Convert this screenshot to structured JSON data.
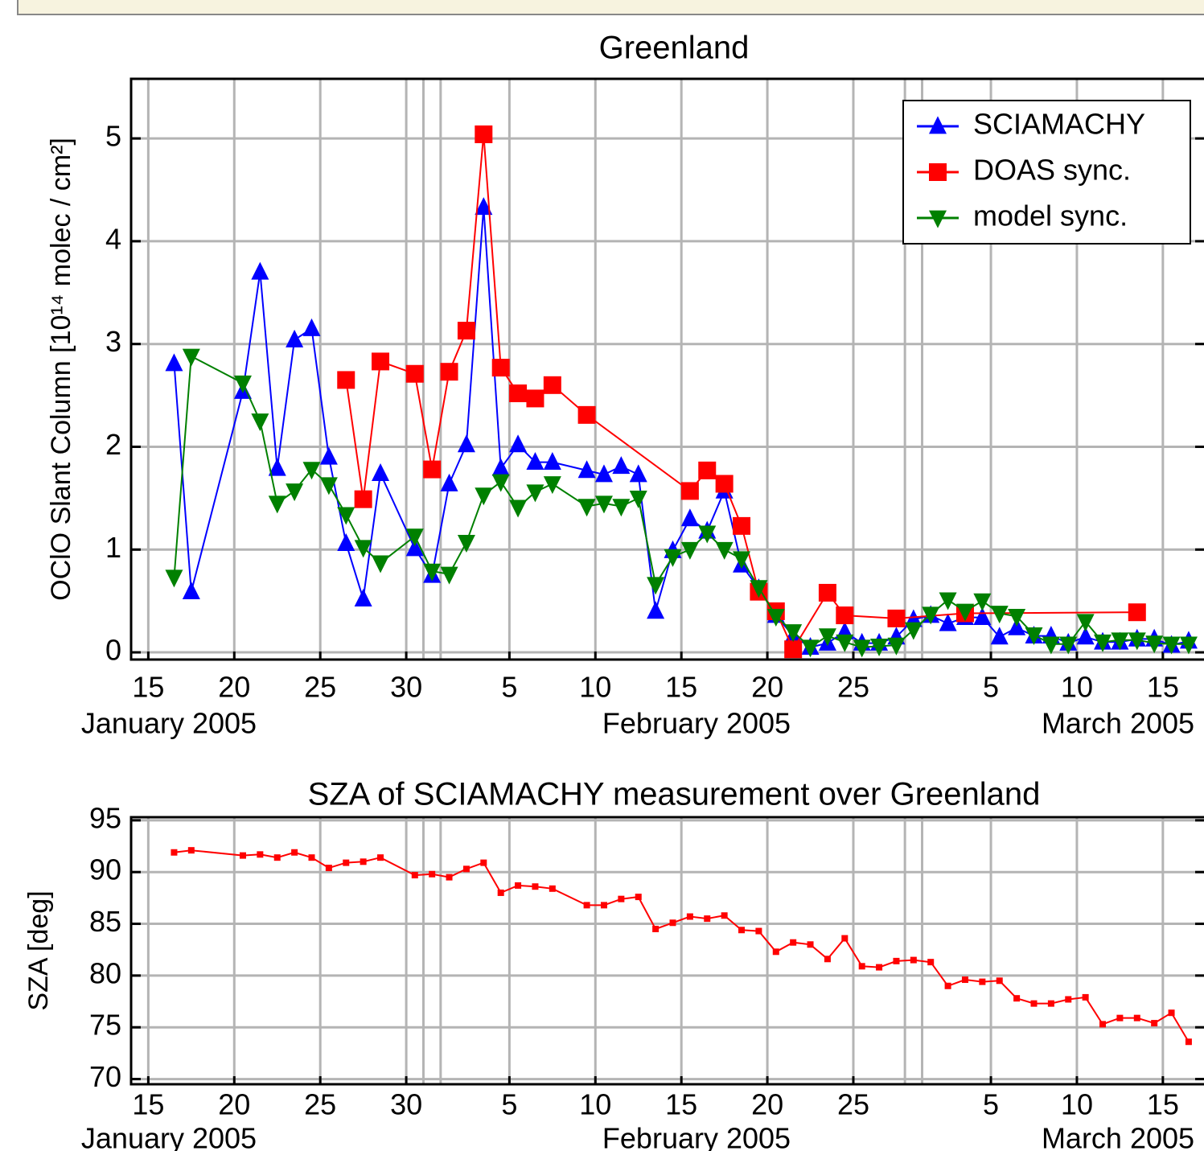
{
  "chart_data": [
    {
      "type": "line",
      "title": "Greenland",
      "y_label": "OClO Slant Column  [10¹⁴ molec / cm²]",
      "month_labels": [
        "January 2005",
        "February 2005",
        "March 2005"
      ],
      "xlim": [
        "2005-01-14",
        "2005-03-18"
      ],
      "xticks": [
        {
          "value": "2005-01-15",
          "label": "15"
        },
        {
          "value": "2005-01-20",
          "label": "20"
        },
        {
          "value": "2005-01-25",
          "label": "25"
        },
        {
          "value": "2005-01-30",
          "label": "30"
        },
        {
          "value": "2005-02-05",
          "label": "5"
        },
        {
          "value": "2005-02-10",
          "label": "10"
        },
        {
          "value": "2005-02-15",
          "label": "15"
        },
        {
          "value": "2005-02-20",
          "label": "20"
        },
        {
          "value": "2005-02-25",
          "label": "25"
        },
        {
          "value": "2005-03-05",
          "label": "5"
        },
        {
          "value": "2005-03-10",
          "label": "10"
        },
        {
          "value": "2005-03-15",
          "label": "15"
        }
      ],
      "month_boundaries": [
        "2005-01-31",
        "2005-02-01",
        "2005-02-28",
        "2005-03-01"
      ],
      "ylim": [
        -0.07,
        5.58
      ],
      "yticks": [
        0,
        1,
        2,
        3,
        4,
        5
      ],
      "grid": true,
      "legend": "upper right",
      "series": [
        {
          "name": "SCIAMACHY",
          "color": "#0000ff",
          "marker": "triangle-up",
          "x": [
            "2005-01-16",
            "2005-01-17",
            "2005-01-20",
            "2005-01-21",
            "2005-01-22",
            "2005-01-23",
            "2005-01-24",
            "2005-01-25",
            "2005-01-26",
            "2005-01-27",
            "2005-01-28",
            "2005-01-30",
            "2005-01-31",
            "2005-02-01",
            "2005-02-02",
            "2005-02-03",
            "2005-02-04",
            "2005-02-05",
            "2005-02-06",
            "2005-02-07",
            "2005-02-09",
            "2005-02-10",
            "2005-02-11",
            "2005-02-12",
            "2005-02-13",
            "2005-02-14",
            "2005-02-15",
            "2005-02-16",
            "2005-02-17",
            "2005-02-18",
            "2005-02-19",
            "2005-02-20",
            "2005-02-21",
            "2005-02-22",
            "2005-02-23",
            "2005-02-24",
            "2005-02-25",
            "2005-02-26",
            "2005-02-27",
            "2005-02-28",
            "2005-03-01",
            "2005-03-02",
            "2005-03-03",
            "2005-03-04",
            "2005-03-05",
            "2005-03-06",
            "2005-03-07",
            "2005-03-08",
            "2005-03-09",
            "2005-03-10",
            "2005-03-11",
            "2005-03-12",
            "2005-03-13",
            "2005-03-14",
            "2005-03-15",
            "2005-03-16"
          ],
          "values": [
            2.81,
            0.59,
            2.54,
            3.7,
            1.79,
            3.04,
            3.15,
            1.9,
            1.06,
            0.52,
            1.74,
            1.01,
            0.75,
            1.64,
            2.02,
            4.33,
            1.79,
            2.02,
            1.85,
            1.85,
            1.77,
            1.73,
            1.81,
            1.73,
            0.4,
            0.99,
            1.3,
            1.18,
            1.57,
            0.85,
            0.62,
            0.36,
            0.16,
            0.05,
            0.09,
            0.2,
            0.09,
            0.09,
            0.15,
            0.32,
            0.36,
            0.28,
            0.34,
            0.34,
            0.15,
            0.24,
            0.16,
            0.16,
            0.09,
            0.15,
            0.1,
            0.1,
            0.13,
            0.13,
            0.07,
            0.11
          ]
        },
        {
          "name": "DOAS sync.",
          "color": "#ff0000",
          "marker": "square",
          "x": [
            "2005-01-26",
            "2005-01-27",
            "2005-01-28",
            "2005-01-30",
            "2005-01-31",
            "2005-02-01",
            "2005-02-02",
            "2005-02-03",
            "2005-02-04",
            "2005-02-05",
            "2005-02-06",
            "2005-02-07",
            "2005-02-09",
            "2005-02-15",
            "2005-02-16",
            "2005-02-17",
            "2005-02-18",
            "2005-02-19",
            "2005-02-20",
            "2005-02-21",
            "2005-02-23",
            "2005-02-24",
            "2005-02-27",
            "2005-03-03",
            "2005-03-13"
          ],
          "values": [
            2.65,
            1.49,
            2.83,
            2.71,
            1.78,
            2.73,
            3.13,
            5.04,
            2.77,
            2.52,
            2.47,
            2.6,
            2.31,
            1.57,
            1.77,
            1.64,
            1.23,
            0.59,
            0.4,
            0.03,
            0.58,
            0.36,
            0.33,
            0.38,
            0.39
          ]
        },
        {
          "name": "model sync.",
          "color": "#008000",
          "marker": "triangle-down",
          "x": [
            "2005-01-16",
            "2005-01-17",
            "2005-01-20",
            "2005-01-21",
            "2005-01-22",
            "2005-01-23",
            "2005-01-24",
            "2005-01-25",
            "2005-01-26",
            "2005-01-27",
            "2005-01-28",
            "2005-01-30",
            "2005-01-31",
            "2005-02-01",
            "2005-02-02",
            "2005-02-03",
            "2005-02-04",
            "2005-02-05",
            "2005-02-06",
            "2005-02-07",
            "2005-02-09",
            "2005-02-10",
            "2005-02-11",
            "2005-02-12",
            "2005-02-13",
            "2005-02-14",
            "2005-02-15",
            "2005-02-16",
            "2005-02-17",
            "2005-02-18",
            "2005-02-19",
            "2005-02-20",
            "2005-02-21",
            "2005-02-22",
            "2005-02-23",
            "2005-02-24",
            "2005-02-25",
            "2005-02-26",
            "2005-02-27",
            "2005-02-28",
            "2005-03-01",
            "2005-03-02",
            "2005-03-03",
            "2005-03-04",
            "2005-03-05",
            "2005-03-06",
            "2005-03-07",
            "2005-03-08",
            "2005-03-09",
            "2005-03-10",
            "2005-03-11",
            "2005-03-12",
            "2005-03-13",
            "2005-03-14",
            "2005-03-15",
            "2005-03-16"
          ],
          "values": [
            0.73,
            2.88,
            2.62,
            2.25,
            1.45,
            1.57,
            1.78,
            1.63,
            1.34,
            1.02,
            0.87,
            1.13,
            0.79,
            0.76,
            1.07,
            1.53,
            1.66,
            1.41,
            1.56,
            1.64,
            1.42,
            1.45,
            1.42,
            1.5,
            0.66,
            0.93,
            1.0,
            1.16,
            1.0,
            0.91,
            0.63,
            0.35,
            0.2,
            0.05,
            0.16,
            0.1,
            0.05,
            0.06,
            0.07,
            0.22,
            0.37,
            0.51,
            0.4,
            0.5,
            0.38,
            0.35,
            0.17,
            0.08,
            0.08,
            0.3,
            0.1,
            0.12,
            0.12,
            0.09,
            0.08,
            0.08
          ]
        }
      ]
    },
    {
      "type": "line",
      "title": "SZA of SCIAMACHY measurement over Greenland",
      "y_label": "SZA [deg]",
      "month_labels": [
        "January 2005",
        "February 2005",
        "March 2005"
      ],
      "xlim": [
        "2005-01-14",
        "2005-03-18"
      ],
      "xticks": [
        {
          "value": "2005-01-15",
          "label": "15"
        },
        {
          "value": "2005-01-20",
          "label": "20"
        },
        {
          "value": "2005-01-25",
          "label": "25"
        },
        {
          "value": "2005-01-30",
          "label": "30"
        },
        {
          "value": "2005-02-05",
          "label": "5"
        },
        {
          "value": "2005-02-10",
          "label": "10"
        },
        {
          "value": "2005-02-15",
          "label": "15"
        },
        {
          "value": "2005-02-20",
          "label": "20"
        },
        {
          "value": "2005-02-25",
          "label": "25"
        },
        {
          "value": "2005-03-05",
          "label": "5"
        },
        {
          "value": "2005-03-10",
          "label": "10"
        },
        {
          "value": "2005-03-15",
          "label": "15"
        }
      ],
      "month_boundaries": [
        "2005-01-31",
        "2005-02-01",
        "2005-02-28",
        "2005-03-01"
      ],
      "ylim": [
        69.5,
        95.3
      ],
      "yticks": [
        70,
        75,
        80,
        85,
        90,
        95
      ],
      "grid": true,
      "series": [
        {
          "color": "#ff0000",
          "marker": "square",
          "x": [
            "2005-01-16",
            "2005-01-17",
            "2005-01-20",
            "2005-01-21",
            "2005-01-22",
            "2005-01-23",
            "2005-01-24",
            "2005-01-25",
            "2005-01-26",
            "2005-01-27",
            "2005-01-28",
            "2005-01-30",
            "2005-01-31",
            "2005-02-01",
            "2005-02-02",
            "2005-02-03",
            "2005-02-04",
            "2005-02-05",
            "2005-02-06",
            "2005-02-07",
            "2005-02-09",
            "2005-02-10",
            "2005-02-11",
            "2005-02-12",
            "2005-02-13",
            "2005-02-14",
            "2005-02-15",
            "2005-02-16",
            "2005-02-17",
            "2005-02-18",
            "2005-02-19",
            "2005-02-20",
            "2005-02-21",
            "2005-02-22",
            "2005-02-23",
            "2005-02-24",
            "2005-02-25",
            "2005-02-26",
            "2005-02-27",
            "2005-02-28",
            "2005-03-01",
            "2005-03-02",
            "2005-03-03",
            "2005-03-04",
            "2005-03-05",
            "2005-03-06",
            "2005-03-07",
            "2005-03-08",
            "2005-03-09",
            "2005-03-10",
            "2005-03-11",
            "2005-03-12",
            "2005-03-13",
            "2005-03-14",
            "2005-03-15",
            "2005-03-16"
          ],
          "values": [
            91.9,
            92.1,
            91.6,
            91.7,
            91.4,
            91.9,
            91.4,
            90.4,
            90.9,
            91.0,
            91.4,
            89.7,
            89.8,
            89.5,
            90.3,
            90.9,
            88.0,
            88.7,
            88.6,
            88.4,
            86.8,
            86.8,
            87.4,
            87.6,
            84.5,
            85.1,
            85.7,
            85.5,
            85.8,
            84.4,
            84.3,
            82.3,
            83.2,
            83.0,
            81.6,
            83.6,
            80.9,
            80.8,
            81.4,
            81.5,
            81.3,
            79.0,
            79.6,
            79.4,
            79.5,
            77.8,
            77.3,
            77.3,
            77.7,
            77.9,
            75.3,
            75.9,
            75.9,
            75.4,
            76.4,
            73.6
          ]
        }
      ]
    }
  ]
}
